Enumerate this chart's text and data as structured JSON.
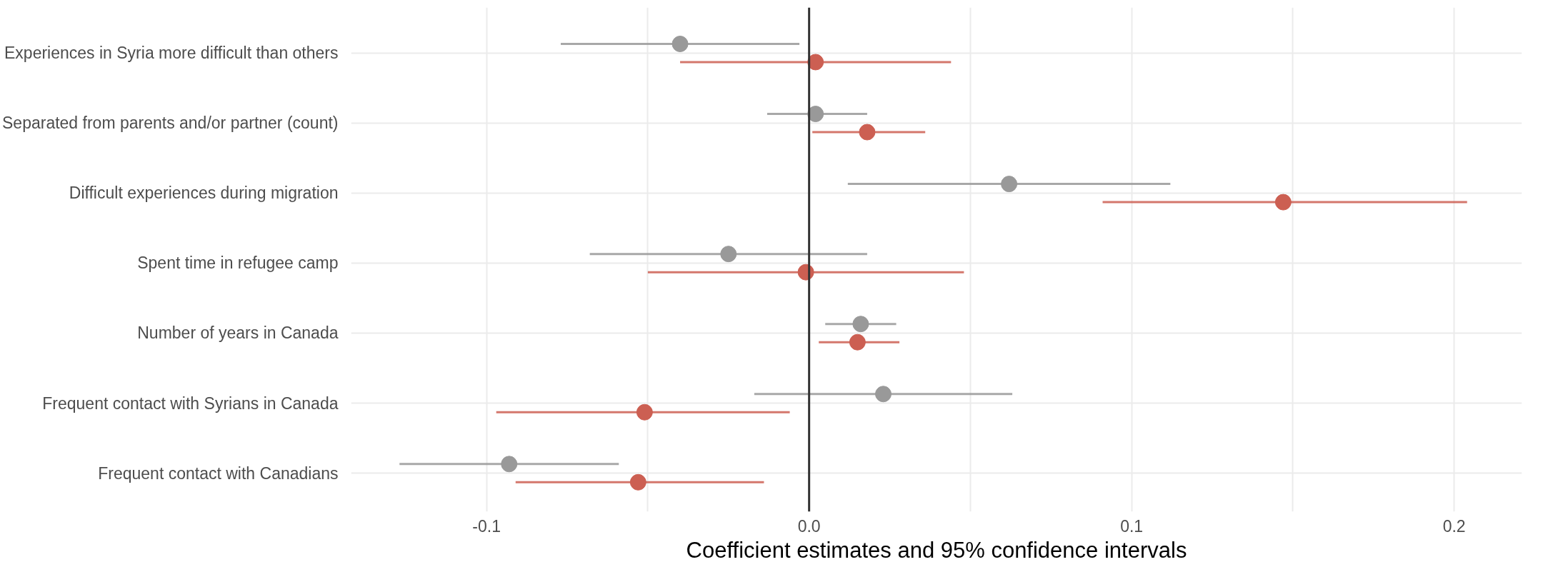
{
  "chart_data": {
    "type": "scatter",
    "orientation": "horizontal",
    "xlabel": "Coefficient estimates and 95% confidence intervals",
    "categories": [
      "Experiences in Syria more difficult than others",
      "Separated from parents and/or partner (count)",
      "Difficult experiences during migration",
      "Spent time in refugee camp",
      "Number of years in Canada",
      "Frequent contact with Syrians in Canada",
      "Frequent contact with Canadians"
    ],
    "series": [
      {
        "color": "#999999",
        "values": [
          -0.04,
          0.002,
          0.062,
          -0.025,
          0.016,
          0.023,
          -0.093
        ],
        "errors": [
          [
            -0.077,
            -0.003
          ],
          [
            -0.013,
            0.018
          ],
          [
            0.012,
            0.112
          ],
          [
            -0.068,
            0.018
          ],
          [
            0.005,
            0.027
          ],
          [
            -0.017,
            0.063
          ],
          [
            -0.127,
            -0.059
          ]
        ]
      },
      {
        "color": "#cc5f52",
        "values": [
          0.002,
          0.018,
          0.147,
          -0.001,
          0.015,
          -0.051,
          -0.053
        ],
        "errors": [
          [
            -0.04,
            0.044
          ],
          [
            0.001,
            0.036
          ],
          [
            0.091,
            0.204
          ],
          [
            -0.05,
            0.048
          ],
          [
            0.003,
            0.028
          ],
          [
            -0.097,
            -0.006
          ],
          [
            -0.091,
            -0.014
          ]
        ]
      }
    ],
    "xlim": [
      -0.142,
      0.221
    ],
    "xticks": [
      {
        "value": -0.1,
        "label": "-0.1"
      },
      {
        "value": -0.05,
        "label": null
      },
      {
        "value": 0,
        "label": "0.0"
      },
      {
        "value": 0.05,
        "label": null
      },
      {
        "value": 0.1,
        "label": "0.1"
      },
      {
        "value": 0.15,
        "label": null
      },
      {
        "value": 0.2,
        "label": "0.2"
      }
    ],
    "ref_lines": [
      {
        "axis": "x",
        "value": 0,
        "color": "#333333"
      }
    ],
    "grid": true,
    "marker": "circle"
  }
}
